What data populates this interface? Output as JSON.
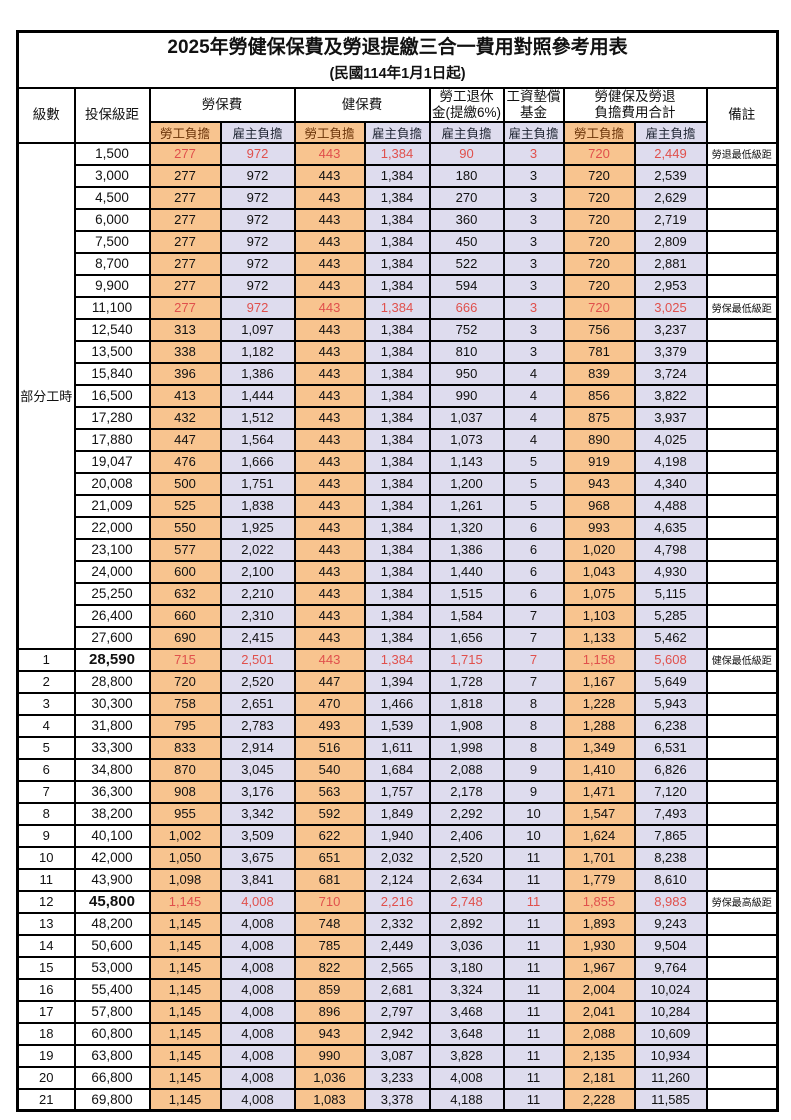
{
  "title": "2025年勞健保保費及勞退提繳三合一費用對照參考用表",
  "subtitle": "(民國114年1月1日起)",
  "header": {
    "level": "級數",
    "bracket": "投保級距",
    "labor_insurance": "勞保費",
    "health_insurance": "健保費",
    "pension_line1": "勞工退休",
    "pension_line2": "金(提繳6%)",
    "wage_fund_line1": "工資墊償",
    "wage_fund_line2": "基金",
    "total_line1": "勞健保及勞退",
    "total_line2": "負擔費用合計",
    "remark": "備註",
    "employee_burden": "勞工負擔",
    "employer_burden": "雇主負擔"
  },
  "part_time_label": "部分工時",
  "part_time_rowspan": 23,
  "colors": {
    "employee_bg": "#F8C48F",
    "employer_bg": "#DEDCEE",
    "highlight_red": "#E0504C",
    "employee_header_text": "#6B3409",
    "employer_header_text": "#1F2533",
    "border": "#000000"
  },
  "rows": [
    {
      "level": "",
      "bracket": "1,500",
      "values": [
        "277",
        "972",
        "443",
        "1,384",
        "90",
        "3",
        "720",
        "2,449"
      ],
      "remark": "勞退最低級距",
      "highlight": true,
      "bold_bracket": false
    },
    {
      "level": "",
      "bracket": "3,000",
      "values": [
        "277",
        "972",
        "443",
        "1,384",
        "180",
        "3",
        "720",
        "2,539"
      ],
      "remark": "",
      "highlight": false,
      "bold_bracket": false
    },
    {
      "level": "",
      "bracket": "4,500",
      "values": [
        "277",
        "972",
        "443",
        "1,384",
        "270",
        "3",
        "720",
        "2,629"
      ],
      "remark": "",
      "highlight": false,
      "bold_bracket": false
    },
    {
      "level": "",
      "bracket": "6,000",
      "values": [
        "277",
        "972",
        "443",
        "1,384",
        "360",
        "3",
        "720",
        "2,719"
      ],
      "remark": "",
      "highlight": false,
      "bold_bracket": false
    },
    {
      "level": "",
      "bracket": "7,500",
      "values": [
        "277",
        "972",
        "443",
        "1,384",
        "450",
        "3",
        "720",
        "2,809"
      ],
      "remark": "",
      "highlight": false,
      "bold_bracket": false
    },
    {
      "level": "",
      "bracket": "8,700",
      "values": [
        "277",
        "972",
        "443",
        "1,384",
        "522",
        "3",
        "720",
        "2,881"
      ],
      "remark": "",
      "highlight": false,
      "bold_bracket": false
    },
    {
      "level": "",
      "bracket": "9,900",
      "values": [
        "277",
        "972",
        "443",
        "1,384",
        "594",
        "3",
        "720",
        "2,953"
      ],
      "remark": "",
      "highlight": false,
      "bold_bracket": false
    },
    {
      "level": "",
      "bracket": "11,100",
      "values": [
        "277",
        "972",
        "443",
        "1,384",
        "666",
        "3",
        "720",
        "3,025"
      ],
      "remark": "勞保最低級距",
      "highlight": true,
      "bold_bracket": false
    },
    {
      "level": "",
      "bracket": "12,540",
      "values": [
        "313",
        "1,097",
        "443",
        "1,384",
        "752",
        "3",
        "756",
        "3,237"
      ],
      "remark": "",
      "highlight": false,
      "bold_bracket": false
    },
    {
      "level": "",
      "bracket": "13,500",
      "values": [
        "338",
        "1,182",
        "443",
        "1,384",
        "810",
        "3",
        "781",
        "3,379"
      ],
      "remark": "",
      "highlight": false,
      "bold_bracket": false
    },
    {
      "level": "",
      "bracket": "15,840",
      "values": [
        "396",
        "1,386",
        "443",
        "1,384",
        "950",
        "4",
        "839",
        "3,724"
      ],
      "remark": "",
      "highlight": false,
      "bold_bracket": false
    },
    {
      "level": "",
      "bracket": "16,500",
      "values": [
        "413",
        "1,444",
        "443",
        "1,384",
        "990",
        "4",
        "856",
        "3,822"
      ],
      "remark": "",
      "highlight": false,
      "bold_bracket": false
    },
    {
      "level": "",
      "bracket": "17,280",
      "values": [
        "432",
        "1,512",
        "443",
        "1,384",
        "1,037",
        "4",
        "875",
        "3,937"
      ],
      "remark": "",
      "highlight": false,
      "bold_bracket": false
    },
    {
      "level": "",
      "bracket": "17,880",
      "values": [
        "447",
        "1,564",
        "443",
        "1,384",
        "1,073",
        "4",
        "890",
        "4,025"
      ],
      "remark": "",
      "highlight": false,
      "bold_bracket": false
    },
    {
      "level": "",
      "bracket": "19,047",
      "values": [
        "476",
        "1,666",
        "443",
        "1,384",
        "1,143",
        "5",
        "919",
        "4,198"
      ],
      "remark": "",
      "highlight": false,
      "bold_bracket": false
    },
    {
      "level": "",
      "bracket": "20,008",
      "values": [
        "500",
        "1,751",
        "443",
        "1,384",
        "1,200",
        "5",
        "943",
        "4,340"
      ],
      "remark": "",
      "highlight": false,
      "bold_bracket": false
    },
    {
      "level": "",
      "bracket": "21,009",
      "values": [
        "525",
        "1,838",
        "443",
        "1,384",
        "1,261",
        "5",
        "968",
        "4,488"
      ],
      "remark": "",
      "highlight": false,
      "bold_bracket": false
    },
    {
      "level": "",
      "bracket": "22,000",
      "values": [
        "550",
        "1,925",
        "443",
        "1,384",
        "1,320",
        "6",
        "993",
        "4,635"
      ],
      "remark": "",
      "highlight": false,
      "bold_bracket": false
    },
    {
      "level": "",
      "bracket": "23,100",
      "values": [
        "577",
        "2,022",
        "443",
        "1,384",
        "1,386",
        "6",
        "1,020",
        "4,798"
      ],
      "remark": "",
      "highlight": false,
      "bold_bracket": false
    },
    {
      "level": "",
      "bracket": "24,000",
      "values": [
        "600",
        "2,100",
        "443",
        "1,384",
        "1,440",
        "6",
        "1,043",
        "4,930"
      ],
      "remark": "",
      "highlight": false,
      "bold_bracket": false
    },
    {
      "level": "",
      "bracket": "25,250",
      "values": [
        "632",
        "2,210",
        "443",
        "1,384",
        "1,515",
        "6",
        "1,075",
        "5,115"
      ],
      "remark": "",
      "highlight": false,
      "bold_bracket": false
    },
    {
      "level": "",
      "bracket": "26,400",
      "values": [
        "660",
        "2,310",
        "443",
        "1,384",
        "1,584",
        "7",
        "1,103",
        "5,285"
      ],
      "remark": "",
      "highlight": false,
      "bold_bracket": false
    },
    {
      "level": "",
      "bracket": "27,600",
      "values": [
        "690",
        "2,415",
        "443",
        "1,384",
        "1,656",
        "7",
        "1,133",
        "5,462"
      ],
      "remark": "",
      "highlight": false,
      "bold_bracket": false
    },
    {
      "level": "1",
      "bracket": "28,590",
      "values": [
        "715",
        "2,501",
        "443",
        "1,384",
        "1,715",
        "7",
        "1,158",
        "5,608"
      ],
      "remark": "健保最低級距",
      "highlight": true,
      "bold_bracket": true
    },
    {
      "level": "2",
      "bracket": "28,800",
      "values": [
        "720",
        "2,520",
        "447",
        "1,394",
        "1,728",
        "7",
        "1,167",
        "5,649"
      ],
      "remark": "",
      "highlight": false,
      "bold_bracket": false
    },
    {
      "level": "3",
      "bracket": "30,300",
      "values": [
        "758",
        "2,651",
        "470",
        "1,466",
        "1,818",
        "8",
        "1,228",
        "5,943"
      ],
      "remark": "",
      "highlight": false,
      "bold_bracket": false
    },
    {
      "level": "4",
      "bracket": "31,800",
      "values": [
        "795",
        "2,783",
        "493",
        "1,539",
        "1,908",
        "8",
        "1,288",
        "6,238"
      ],
      "remark": "",
      "highlight": false,
      "bold_bracket": false
    },
    {
      "level": "5",
      "bracket": "33,300",
      "values": [
        "833",
        "2,914",
        "516",
        "1,611",
        "1,998",
        "8",
        "1,349",
        "6,531"
      ],
      "remark": "",
      "highlight": false,
      "bold_bracket": false
    },
    {
      "level": "6",
      "bracket": "34,800",
      "values": [
        "870",
        "3,045",
        "540",
        "1,684",
        "2,088",
        "9",
        "1,410",
        "6,826"
      ],
      "remark": "",
      "highlight": false,
      "bold_bracket": false
    },
    {
      "level": "7",
      "bracket": "36,300",
      "values": [
        "908",
        "3,176",
        "563",
        "1,757",
        "2,178",
        "9",
        "1,471",
        "7,120"
      ],
      "remark": "",
      "highlight": false,
      "bold_bracket": false
    },
    {
      "level": "8",
      "bracket": "38,200",
      "values": [
        "955",
        "3,342",
        "592",
        "1,849",
        "2,292",
        "10",
        "1,547",
        "7,493"
      ],
      "remark": "",
      "highlight": false,
      "bold_bracket": false
    },
    {
      "level": "9",
      "bracket": "40,100",
      "values": [
        "1,002",
        "3,509",
        "622",
        "1,940",
        "2,406",
        "10",
        "1,624",
        "7,865"
      ],
      "remark": "",
      "highlight": false,
      "bold_bracket": false
    },
    {
      "level": "10",
      "bracket": "42,000",
      "values": [
        "1,050",
        "3,675",
        "651",
        "2,032",
        "2,520",
        "11",
        "1,701",
        "8,238"
      ],
      "remark": "",
      "highlight": false,
      "bold_bracket": false
    },
    {
      "level": "11",
      "bracket": "43,900",
      "values": [
        "1,098",
        "3,841",
        "681",
        "2,124",
        "2,634",
        "11",
        "1,779",
        "8,610"
      ],
      "remark": "",
      "highlight": false,
      "bold_bracket": false
    },
    {
      "level": "12",
      "bracket": "45,800",
      "values": [
        "1,145",
        "4,008",
        "710",
        "2,216",
        "2,748",
        "11",
        "1,855",
        "8,983"
      ],
      "remark": "勞保最高級距",
      "highlight": true,
      "bold_bracket": true
    },
    {
      "level": "13",
      "bracket": "48,200",
      "values": [
        "1,145",
        "4,008",
        "748",
        "2,332",
        "2,892",
        "11",
        "1,893",
        "9,243"
      ],
      "remark": "",
      "highlight": false,
      "bold_bracket": false
    },
    {
      "level": "14",
      "bracket": "50,600",
      "values": [
        "1,145",
        "4,008",
        "785",
        "2,449",
        "3,036",
        "11",
        "1,930",
        "9,504"
      ],
      "remark": "",
      "highlight": false,
      "bold_bracket": false
    },
    {
      "level": "15",
      "bracket": "53,000",
      "values": [
        "1,145",
        "4,008",
        "822",
        "2,565",
        "3,180",
        "11",
        "1,967",
        "9,764"
      ],
      "remark": "",
      "highlight": false,
      "bold_bracket": false
    },
    {
      "level": "16",
      "bracket": "55,400",
      "values": [
        "1,145",
        "4,008",
        "859",
        "2,681",
        "3,324",
        "11",
        "2,004",
        "10,024"
      ],
      "remark": "",
      "highlight": false,
      "bold_bracket": false
    },
    {
      "level": "17",
      "bracket": "57,800",
      "values": [
        "1,145",
        "4,008",
        "896",
        "2,797",
        "3,468",
        "11",
        "2,041",
        "10,284"
      ],
      "remark": "",
      "highlight": false,
      "bold_bracket": false
    },
    {
      "level": "18",
      "bracket": "60,800",
      "values": [
        "1,145",
        "4,008",
        "943",
        "2,942",
        "3,648",
        "11",
        "2,088",
        "10,609"
      ],
      "remark": "",
      "highlight": false,
      "bold_bracket": false
    },
    {
      "level": "19",
      "bracket": "63,800",
      "values": [
        "1,145",
        "4,008",
        "990",
        "3,087",
        "3,828",
        "11",
        "2,135",
        "10,934"
      ],
      "remark": "",
      "highlight": false,
      "bold_bracket": false
    },
    {
      "level": "20",
      "bracket": "66,800",
      "values": [
        "1,145",
        "4,008",
        "1,036",
        "3,233",
        "4,008",
        "11",
        "2,181",
        "11,260"
      ],
      "remark": "",
      "highlight": false,
      "bold_bracket": false
    },
    {
      "level": "21",
      "bracket": "69,800",
      "values": [
        "1,145",
        "4,008",
        "1,083",
        "3,378",
        "4,188",
        "11",
        "2,228",
        "11,585"
      ],
      "remark": "",
      "highlight": false,
      "bold_bracket": false
    }
  ]
}
